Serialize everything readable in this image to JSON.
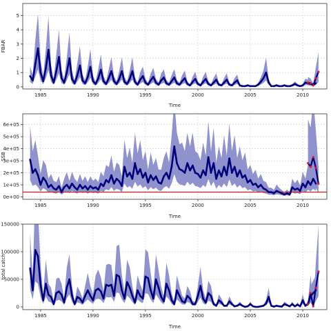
{
  "chart_data": [
    {
      "type": "line",
      "ylabel": "FBAR",
      "xlabel": "Time",
      "xlim": [
        1983.3,
        2012.3
      ],
      "ylim": [
        -0.15,
        5.85
      ],
      "x_ticks": [
        1985,
        1990,
        1995,
        2000,
        2005,
        2010
      ],
      "y_ticks": [
        0,
        1,
        2,
        3,
        4,
        5
      ],
      "y_tick_labels": [
        "0",
        "1",
        "2",
        "3",
        "4",
        "5"
      ],
      "grid": true,
      "colors": {
        "line": "#00007a",
        "band": "#8f92cc",
        "forecast": "#e8102a"
      },
      "series": [
        {
          "x": [
            1984.0,
            1984.25,
            1984.5,
            1984.75,
            1985.0,
            1985.25,
            1985.5,
            1985.75,
            1986.0,
            1986.25,
            1986.5,
            1986.75,
            1987.0,
            1987.25,
            1987.5,
            1987.75,
            1988.0,
            1988.25,
            1988.5,
            1988.75,
            1989.0,
            1989.25,
            1989.5,
            1989.75,
            1990.0,
            1990.25,
            1990.5,
            1990.75,
            1991.0,
            1991.25,
            1991.5,
            1991.75,
            1992.0,
            1992.25,
            1992.5,
            1992.75,
            1993.0,
            1993.25,
            1993.5,
            1993.75,
            1994.0,
            1994.25,
            1994.5,
            1994.75,
            1995.0,
            1995.25,
            1995.5,
            1995.75,
            1996.0,
            1996.25,
            1996.5,
            1996.75,
            1997.0,
            1997.25,
            1997.5,
            1997.75,
            1998.0,
            1998.25,
            1998.5,
            1998.75,
            1999.0,
            1999.25,
            1999.5,
            1999.75,
            2000.0,
            2000.25,
            2000.5,
            2000.75,
            2001.0,
            2001.25,
            2001.5,
            2001.75,
            2002.0,
            2002.25,
            2002.5,
            2002.75,
            2003.0,
            2003.25,
            2003.5,
            2003.75,
            2004.0,
            2004.25,
            2004.5,
            2004.75,
            2005.0,
            2005.25,
            2005.5,
            2005.75,
            2006.0,
            2006.25,
            2006.5,
            2006.75,
            2007.0,
            2007.25,
            2007.5,
            2007.75,
            2008.0,
            2008.25,
            2008.5,
            2008.75,
            2009.0,
            2009.25,
            2009.5,
            2009.75,
            2010.0,
            2010.25,
            2010.5,
            2010.75,
            2011.0,
            2011.25
          ],
          "y": [
            0.75,
            0.45,
            1.6,
            2.7,
            1.0,
            0.4,
            1.3,
            2.6,
            0.8,
            0.3,
            1.1,
            2.1,
            0.6,
            0.3,
            1.0,
            2.0,
            0.55,
            0.25,
            0.8,
            1.5,
            0.45,
            0.25,
            0.7,
            1.4,
            0.4,
            0.2,
            0.6,
            1.2,
            0.4,
            0.2,
            0.6,
            1.1,
            0.4,
            0.2,
            0.55,
            1.1,
            0.35,
            0.2,
            0.55,
            1.1,
            0.35,
            0.15,
            0.5,
            0.75,
            0.3,
            0.15,
            0.45,
            0.7,
            0.3,
            0.15,
            0.45,
            0.65,
            0.25,
            0.15,
            0.4,
            0.65,
            0.25,
            0.15,
            0.4,
            0.6,
            0.2,
            0.1,
            0.35,
            0.55,
            0.2,
            0.1,
            0.35,
            0.55,
            0.2,
            0.1,
            0.3,
            0.5,
            0.15,
            0.1,
            0.3,
            0.5,
            0.15,
            0.1,
            0.3,
            0.45,
            0.1,
            0.05,
            0.05,
            0.1,
            0.05,
            0.05,
            0.05,
            0.15,
            0.35,
            0.6,
            1.0,
            0.3,
            0.05,
            0.05,
            0.1,
            0.05,
            0.05,
            0.1,
            0.05,
            0.05,
            0.1,
            0.2,
            0.1,
            0.05,
            0.1,
            0.3,
            0.25,
            0.2,
            0.15,
            0.25
          ]
        },
        {
          "x": [
            2010.5,
            2010.75,
            2011.0,
            2011.25,
            2011.5
          ],
          "y": [
            0.3,
            0.25,
            0.1,
            0.6,
            1.05
          ]
        }
      ]
    },
    {
      "type": "line",
      "ylabel": "SSB",
      "xlabel": "Time",
      "xlim": [
        1983.3,
        2012.3
      ],
      "ylim": [
        -20000,
        690000
      ],
      "x_ticks": [
        1985,
        1990,
        1995,
        2000,
        2005,
        2010
      ],
      "y_ticks": [
        0,
        100000,
        200000,
        300000,
        400000,
        500000,
        600000
      ],
      "y_tick_labels": [
        "0e+00",
        "1e+05",
        "2e+05",
        "3e+05",
        "4e+05",
        "5e+05",
        "6e+05"
      ],
      "reference_line": 40000,
      "grid": true,
      "colors": {
        "line": "#00007a",
        "band": "#8f92cc",
        "reference": "#cc2a2a",
        "forecast": "#e8102a"
      },
      "series": [
        {
          "x": [
            1984.0,
            1984.25,
            1984.5,
            1984.75,
            1985.0,
            1985.25,
            1985.5,
            1985.75,
            1986.0,
            1986.25,
            1986.5,
            1986.75,
            1987.0,
            1987.25,
            1987.5,
            1987.75,
            1988.0,
            1988.25,
            1988.5,
            1988.75,
            1989.0,
            1989.25,
            1989.5,
            1989.75,
            1990.0,
            1990.25,
            1990.5,
            1990.75,
            1991.0,
            1991.25,
            1991.5,
            1991.75,
            1992.0,
            1992.25,
            1992.5,
            1992.75,
            1993.0,
            1993.25,
            1993.5,
            1993.75,
            1994.0,
            1994.25,
            1994.5,
            1994.75,
            1995.0,
            1995.25,
            1995.5,
            1995.75,
            1996.0,
            1996.25,
            1996.5,
            1996.75,
            1997.0,
            1997.25,
            1997.5,
            1997.75,
            1998.0,
            1998.25,
            1998.5,
            1998.75,
            1999.0,
            1999.25,
            1999.5,
            1999.75,
            2000.0,
            2000.25,
            2000.5,
            2000.75,
            2001.0,
            2001.25,
            2001.5,
            2001.75,
            2002.0,
            2002.25,
            2002.5,
            2002.75,
            2003.0,
            2003.25,
            2003.5,
            2003.75,
            2004.0,
            2004.25,
            2004.5,
            2004.75,
            2005.0,
            2005.25,
            2005.5,
            2005.75,
            2006.0,
            2006.25,
            2006.5,
            2006.75,
            2007.0,
            2007.25,
            2007.5,
            2007.75,
            2008.0,
            2008.25,
            2008.5,
            2008.75,
            2009.0,
            2009.25,
            2009.5,
            2009.75,
            2010.0,
            2010.25,
            2010.5,
            2010.75,
            2011.0,
            2011.25
          ],
          "y": [
            310000,
            200000,
            230000,
            180000,
            100000,
            160000,
            130000,
            80000,
            100000,
            70000,
            60000,
            90000,
            40000,
            80000,
            100000,
            70000,
            110000,
            80000,
            60000,
            100000,
            70000,
            90000,
            60000,
            90000,
            70000,
            80000,
            60000,
            110000,
            90000,
            140000,
            120000,
            180000,
            110000,
            150000,
            130000,
            90000,
            250000,
            170000,
            200000,
            150000,
            280000,
            190000,
            230000,
            160000,
            200000,
            120000,
            180000,
            140000,
            170000,
            120000,
            110000,
            170000,
            200000,
            150000,
            250000,
            420000,
            280000,
            230000,
            220000,
            200000,
            280000,
            220000,
            260000,
            200000,
            190000,
            160000,
            220000,
            180000,
            330000,
            200000,
            280000,
            150000,
            220000,
            170000,
            250000,
            180000,
            320000,
            200000,
            250000,
            170000,
            220000,
            160000,
            180000,
            120000,
            140000,
            100000,
            110000,
            80000,
            100000,
            70000,
            60000,
            40000,
            40000,
            30000,
            50000,
            40000,
            30000,
            20000,
            30000,
            20000,
            80000,
            60000,
            70000,
            50000,
            110000,
            80000,
            130000,
            100000,
            150000,
            110000
          ]
        },
        {
          "x": [
            2010.5,
            2010.75,
            2011.0,
            2011.25,
            2011.5
          ],
          "y": [
            280000,
            250000,
            330000,
            240000,
            110000
          ]
        }
      ]
    },
    {
      "type": "line",
      "ylabel": "total catch",
      "xlabel": "Time",
      "xlim": [
        1983.3,
        2012.3
      ],
      "ylim": [
        -5000,
        150000
      ],
      "x_ticks": [
        1985,
        1990,
        1995,
        2000,
        2005,
        2010
      ],
      "y_ticks": [
        0,
        50000,
        100000,
        150000
      ],
      "y_tick_labels": [
        "0",
        "50000",
        "100000",
        "150000"
      ],
      "grid": true,
      "colors": {
        "line": "#00007a",
        "band": "#8f92cc",
        "forecast": "#e8102a"
      },
      "series": [
        {
          "x": [
            1984.0,
            1984.25,
            1984.5,
            1984.75,
            1985.0,
            1985.25,
            1985.5,
            1985.75,
            1986.0,
            1986.25,
            1986.5,
            1986.75,
            1987.0,
            1987.25,
            1987.5,
            1987.75,
            1988.0,
            1988.25,
            1988.5,
            1988.75,
            1989.0,
            1989.25,
            1989.5,
            1989.75,
            1990.0,
            1990.25,
            1990.5,
            1990.75,
            1991.0,
            1991.25,
            1991.5,
            1991.75,
            1992.0,
            1992.25,
            1992.5,
            1992.75,
            1993.0,
            1993.25,
            1993.5,
            1993.75,
            1994.0,
            1994.25,
            1994.5,
            1994.75,
            1995.0,
            1995.25,
            1995.5,
            1995.75,
            1996.0,
            1996.25,
            1996.5,
            1996.75,
            1997.0,
            1997.25,
            1997.5,
            1997.75,
            1998.0,
            1998.25,
            1998.5,
            1998.75,
            1999.0,
            1999.25,
            1999.5,
            1999.75,
            2000.0,
            2000.25,
            2000.5,
            2000.75,
            2001.0,
            2001.25,
            2001.5,
            2001.75,
            2002.0,
            2002.25,
            2002.5,
            2002.75,
            2003.0,
            2003.25,
            2003.5,
            2003.75,
            2004.0,
            2004.25,
            2004.5,
            2004.75,
            2005.0,
            2005.25,
            2005.5,
            2005.75,
            2006.0,
            2006.25,
            2006.5,
            2006.75,
            2007.0,
            2007.25,
            2007.5,
            2007.75,
            2008.0,
            2008.25,
            2008.5,
            2008.75,
            2009.0,
            2009.25,
            2009.5,
            2009.75,
            2010.0,
            2010.25,
            2010.5,
            2010.75,
            2011.0,
            2011.25
          ],
          "y": [
            70000,
            30000,
            103000,
            92000,
            40000,
            12000,
            42000,
            22000,
            18000,
            5000,
            25000,
            28000,
            22000,
            8000,
            35000,
            50000,
            20000,
            5000,
            18000,
            15000,
            8000,
            20000,
            30000,
            20000,
            12000,
            30000,
            33000,
            28000,
            15000,
            40000,
            38000,
            40000,
            20000,
            58000,
            55000,
            30000,
            15000,
            45000,
            35000,
            20000,
            8000,
            30000,
            20000,
            15000,
            55000,
            52000,
            30000,
            15000,
            50000,
            35000,
            18000,
            10000,
            42000,
            30000,
            12000,
            5000,
            30000,
            20000,
            10000,
            8000,
            20000,
            15000,
            5000,
            5000,
            20000,
            38000,
            15000,
            8000,
            25000,
            20000,
            5000,
            2000,
            12000,
            8000,
            2000,
            2000,
            10000,
            5000,
            1000,
            2000,
            5000,
            2000,
            0,
            1000,
            5000,
            1000,
            0,
            0,
            1000,
            2000,
            6000,
            18000,
            2000,
            500,
            2000,
            1000,
            500,
            5000,
            3000,
            1000,
            5000,
            1000,
            4000,
            1000,
            12000,
            2000,
            5000,
            20000,
            25000,
            30000
          ]
        },
        {
          "x": [
            2010.5,
            2010.75,
            2011.0,
            2011.25,
            2011.5
          ],
          "y": [
            5000,
            25000,
            1000,
            35000,
            64000
          ]
        }
      ]
    }
  ]
}
